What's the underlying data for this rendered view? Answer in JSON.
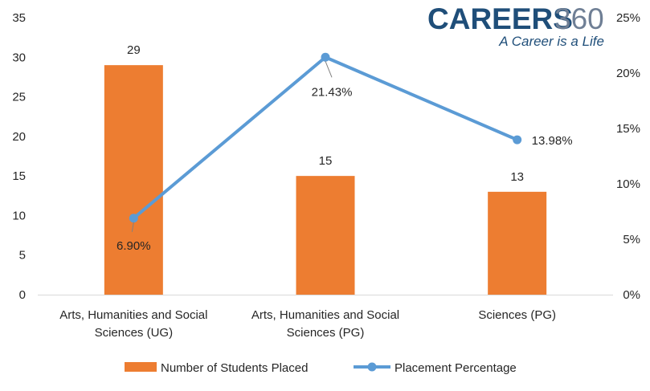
{
  "logo": {
    "brand": "CAREERS",
    "number": "360",
    "tagline": "A Career is a Life"
  },
  "colors": {
    "bar": "#ED7D31",
    "line": "#5B9BD5",
    "axis_text": "#262626",
    "logo_blue": "#1F4E79",
    "logo_number": "#6F7F95",
    "leader": "#808080"
  },
  "chart_data": {
    "type": "bar",
    "categories": [
      [
        "Arts, Humanities and Social",
        "Sciences (UG)"
      ],
      [
        "Arts, Humanities and Social",
        "Sciences (PG)"
      ],
      [
        "Sciences (PG)"
      ]
    ],
    "series": [
      {
        "name": "Number of Students Placed",
        "type": "bar",
        "axis": "left",
        "values": [
          29,
          15,
          13
        ],
        "labels": [
          "29",
          "15",
          "13"
        ]
      },
      {
        "name": "Placement Percentage",
        "type": "line",
        "axis": "right",
        "values": [
          6.9,
          21.43,
          13.98
        ],
        "labels": [
          "6.90%",
          "21.43%",
          "13.98%"
        ]
      }
    ],
    "y_left": {
      "min": 0,
      "max": 35,
      "ticks": [
        "0",
        "5",
        "10",
        "15",
        "20",
        "25",
        "30",
        "35"
      ]
    },
    "y_right": {
      "min": 0,
      "max": 25,
      "ticks": [
        "0%",
        "5%",
        "10%",
        "15%",
        "20%",
        "25%"
      ]
    },
    "grid": false,
    "legend": "bottom"
  }
}
